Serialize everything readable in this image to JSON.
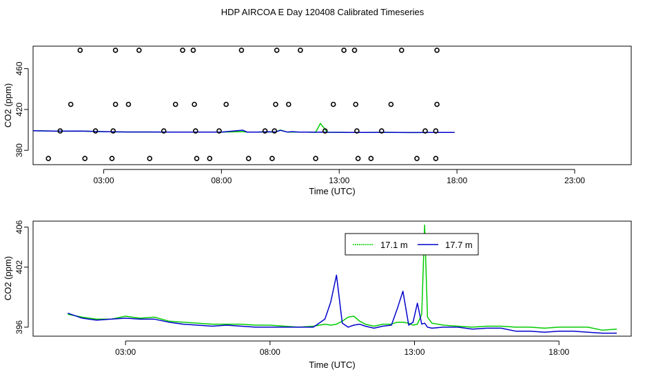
{
  "title": "HDP AIRCOA E  Day 120408  Calibrated Timeseries",
  "chart_data": [
    {
      "type": "scatter",
      "xlabel": "Time (UTC)",
      "ylabel": "CO2 (ppm)",
      "xlim": [
        0.0,
        25.4
      ],
      "ylim": [
        366,
        482
      ],
      "x_ticks": [
        3,
        8,
        13,
        18,
        23
      ],
      "x_tick_labels": [
        "03:00",
        "08:00",
        "13:00",
        "18:00",
        "23:00"
      ],
      "y_ticks": [
        380,
        420,
        460
      ],
      "y_tick_labels": [
        "380",
        "420",
        "460"
      ],
      "grid": false,
      "legend": "none",
      "points": [
        [
          2.0,
          478
        ],
        [
          3.5,
          478
        ],
        [
          4.5,
          478
        ],
        [
          6.35,
          478
        ],
        [
          6.8,
          478
        ],
        [
          8.85,
          478
        ],
        [
          10.35,
          478
        ],
        [
          11.35,
          478
        ],
        [
          13.2,
          478
        ],
        [
          13.65,
          478
        ],
        [
          15.65,
          478
        ],
        [
          17.15,
          478
        ],
        [
          1.6,
          425
        ],
        [
          3.5,
          425
        ],
        [
          4.05,
          425
        ],
        [
          6.05,
          425
        ],
        [
          6.85,
          425
        ],
        [
          8.2,
          425
        ],
        [
          10.3,
          425
        ],
        [
          10.85,
          425
        ],
        [
          12.75,
          425
        ],
        [
          13.7,
          425
        ],
        [
          15.2,
          425
        ],
        [
          17.15,
          425
        ],
        [
          1.15,
          399
        ],
        [
          2.65,
          399
        ],
        [
          3.4,
          399
        ],
        [
          5.55,
          399
        ],
        [
          6.9,
          399
        ],
        [
          7.9,
          399
        ],
        [
          9.85,
          399
        ],
        [
          10.25,
          399
        ],
        [
          12.4,
          399
        ],
        [
          13.75,
          399
        ],
        [
          14.8,
          399
        ],
        [
          16.65,
          399
        ],
        [
          17.1,
          399
        ],
        [
          0.65,
          372
        ],
        [
          2.2,
          372
        ],
        [
          3.35,
          372
        ],
        [
          4.95,
          372
        ],
        [
          6.95,
          372
        ],
        [
          7.5,
          372
        ],
        [
          9.15,
          372
        ],
        [
          10.15,
          372
        ],
        [
          12.0,
          372
        ],
        [
          13.8,
          372
        ],
        [
          14.35,
          372
        ],
        [
          16.3,
          372
        ],
        [
          17.1,
          372
        ]
      ],
      "series": [
        {
          "name": "17.1 m",
          "color": "#00cc00",
          "x": [
            0.0,
            1,
            2,
            3,
            4,
            5,
            6,
            7,
            8,
            8.9,
            9.1,
            9.5,
            10,
            10.3,
            10.5,
            10.8,
            11.0,
            11.3,
            11.6,
            12,
            12.2,
            12.5,
            13,
            14,
            15,
            16,
            17,
            17.9
          ],
          "values": [
            399.2,
            398.8,
            398.9,
            398.3,
            398.0,
            398.0,
            397.9,
            397.8,
            397.8,
            398.3,
            397.8,
            397.9,
            398.1,
            398.0,
            399.9,
            397.9,
            398.0,
            397.8,
            397.8,
            397.7,
            406.3,
            397.7,
            397.6,
            397.5,
            397.6,
            397.4,
            397.5,
            397.5
          ]
        },
        {
          "name": "17.7 m",
          "color": "#0000cc",
          "x": [
            0.0,
            1,
            2,
            3,
            4,
            5,
            6,
            7,
            8,
            8.9,
            9.1,
            9.5,
            10,
            10.3,
            10.5,
            10.8,
            11.0,
            11.3,
            11.6,
            12,
            12.2,
            12.5,
            13,
            14,
            15,
            16,
            17,
            17.9
          ],
          "values": [
            399.2,
            398.8,
            398.9,
            398.3,
            398.0,
            398.0,
            397.9,
            397.8,
            397.8,
            399.7,
            397.8,
            397.9,
            398.1,
            398.0,
            399.6,
            397.9,
            398.3,
            397.8,
            397.8,
            397.7,
            397.9,
            397.7,
            397.6,
            397.5,
            397.6,
            397.4,
            397.5,
            397.5
          ]
        }
      ]
    },
    {
      "type": "line",
      "xlabel": "Time (UTC)",
      "ylabel": "CO2 (ppm)",
      "xlim": [
        -0.2,
        20.5
      ],
      "ylim": [
        395.1,
        406.6
      ],
      "x_ticks": [
        3,
        8,
        13,
        18
      ],
      "x_tick_labels": [
        "03:00",
        "08:00",
        "13:00",
        "18:00"
      ],
      "y_ticks": [
        396,
        402,
        406
      ],
      "y_tick_labels": [
        "396",
        "402",
        "406"
      ],
      "grid": false,
      "legend": "top-center",
      "series": [
        {
          "name": "17.1 m",
          "color": "#00cc00",
          "x": [
            1.0,
            1.5,
            2.0,
            2.5,
            3.0,
            3.5,
            4.0,
            4.5,
            5.0,
            5.5,
            6.0,
            6.5,
            7.0,
            7.5,
            8.0,
            8.5,
            9.0,
            9.5,
            9.9,
            10.1,
            10.3,
            10.5,
            10.7,
            10.9,
            11.1,
            11.3,
            11.6,
            11.9,
            12.2,
            12.4,
            12.6,
            12.8,
            12.95,
            13.1,
            13.25,
            13.35,
            13.45,
            13.6,
            14.0,
            14.5,
            15.0,
            15.5,
            16.0,
            16.5,
            17.0,
            17.5,
            18.0,
            18.5,
            19.0,
            19.5,
            20.0
          ],
          "values": [
            397.3,
            397.0,
            396.8,
            396.8,
            397.1,
            396.9,
            397.0,
            396.6,
            396.5,
            396.4,
            396.3,
            396.3,
            396.3,
            396.2,
            396.2,
            396.1,
            396.0,
            396.1,
            396.3,
            396.2,
            396.3,
            396.6,
            397.0,
            397.1,
            396.6,
            396.3,
            396.1,
            396.3,
            396.3,
            396.5,
            396.5,
            396.4,
            396.2,
            396.3,
            397.3,
            406.2,
            397.0,
            396.4,
            396.2,
            396.1,
            396.0,
            396.1,
            396.1,
            396.0,
            396.0,
            395.9,
            396.0,
            396.0,
            396.0,
            395.7,
            395.8
          ]
        },
        {
          "name": "17.7 m",
          "color": "#0000cc",
          "x": [
            1.0,
            1.5,
            2.0,
            2.5,
            3.0,
            3.5,
            4.0,
            4.5,
            5.0,
            5.5,
            6.0,
            6.5,
            7.0,
            7.5,
            8.0,
            8.5,
            9.0,
            9.5,
            9.9,
            10.1,
            10.3,
            10.5,
            10.7,
            10.9,
            11.1,
            11.3,
            11.6,
            11.9,
            12.2,
            12.4,
            12.6,
            12.8,
            12.95,
            13.1,
            13.25,
            13.35,
            13.45,
            13.6,
            14.0,
            14.5,
            15.0,
            15.5,
            16.0,
            16.5,
            17.0,
            17.5,
            18.0,
            18.5,
            19.0,
            19.5,
            20.0
          ],
          "values": [
            397.4,
            396.9,
            396.7,
            396.8,
            396.9,
            396.8,
            396.8,
            396.5,
            396.3,
            396.2,
            396.1,
            396.2,
            396.1,
            396.0,
            396.0,
            396.0,
            396.0,
            396.0,
            396.8,
            398.5,
            401.2,
            396.4,
            396.0,
            396.2,
            396.3,
            396.1,
            395.9,
            396.1,
            396.2,
            397.8,
            399.6,
            396.2,
            396.5,
            398.4,
            396.3,
            396.4,
            396.0,
            395.9,
            396.0,
            396.0,
            395.8,
            395.9,
            395.9,
            395.6,
            395.6,
            395.5,
            395.6,
            395.6,
            395.5,
            395.4,
            395.4
          ]
        }
      ]
    }
  ]
}
